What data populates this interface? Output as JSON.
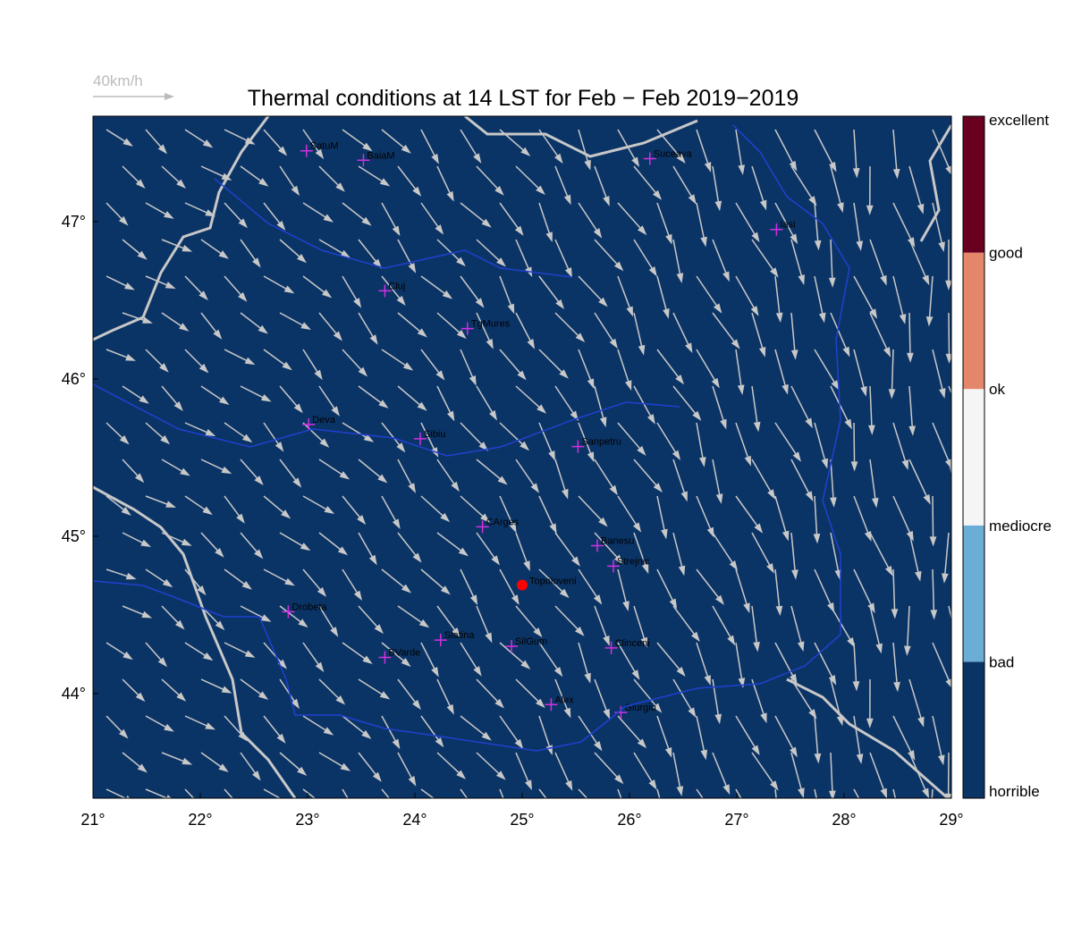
{
  "map": {
    "title": "Thermal conditions at 14 LST for Feb − Feb  2019−2019",
    "wind_reference": "40km/h",
    "background": "#0b3466",
    "xlim": [
      21,
      29
    ],
    "ylim": [
      43.335,
      47.67
    ],
    "xticks": [
      {
        "value": 21,
        "label": "21°"
      },
      {
        "value": 22,
        "label": "22°"
      },
      {
        "value": 23,
        "label": "23°"
      },
      {
        "value": 24,
        "label": "24°"
      },
      {
        "value": 25,
        "label": "25°"
      },
      {
        "value": 26,
        "label": "26°"
      },
      {
        "value": 27,
        "label": "27°"
      },
      {
        "value": 28,
        "label": "28°"
      },
      {
        "value": 29,
        "label": "29°"
      }
    ],
    "yticks": [
      {
        "value": 44,
        "label": "44°"
      },
      {
        "value": 45,
        "label": "45°"
      },
      {
        "value": 46,
        "label": "46°"
      },
      {
        "value": 47,
        "label": "47°"
      }
    ],
    "stations": [
      {
        "name": "SatuM",
        "lon": 22.99,
        "lat": 47.45
      },
      {
        "name": "BaiaM",
        "lon": 23.52,
        "lat": 47.39
      },
      {
        "name": "Suceava",
        "lon": 26.19,
        "lat": 47.4
      },
      {
        "name": "Iasi",
        "lon": 27.37,
        "lat": 46.95
      },
      {
        "name": "Cluj",
        "lon": 23.72,
        "lat": 46.56
      },
      {
        "name": "TgMures",
        "lon": 24.49,
        "lat": 46.32
      },
      {
        "name": "Deva",
        "lon": 23.01,
        "lat": 45.71
      },
      {
        "name": "Sibiu",
        "lon": 24.05,
        "lat": 45.62
      },
      {
        "name": "Sanpetru",
        "lon": 25.52,
        "lat": 45.57
      },
      {
        "name": "CArges",
        "lon": 24.63,
        "lat": 45.06
      },
      {
        "name": "Banesu",
        "lon": 25.7,
        "lat": 44.94
      },
      {
        "name": "Strejnic",
        "lon": 25.85,
        "lat": 44.81
      },
      {
        "name": "Drobeta",
        "lon": 22.82,
        "lat": 44.52
      },
      {
        "name": "Slatina",
        "lon": 24.24,
        "lat": 44.34
      },
      {
        "name": "SilGum",
        "lon": 24.9,
        "lat": 44.3
      },
      {
        "name": "BVarde",
        "lon": 23.72,
        "lat": 44.23
      },
      {
        "name": "Clinceni",
        "lon": 25.83,
        "lat": 44.29
      },
      {
        "name": "Alex",
        "lon": 25.27,
        "lat": 43.93
      },
      {
        "name": "Giurgiu",
        "lon": 25.92,
        "lat": 43.88
      }
    ],
    "highlight": {
      "name": "Topoloveni",
      "lon": 25.0,
      "lat": 44.69,
      "color": "#ff0000"
    },
    "colorbar": {
      "labels": [
        "horrible",
        "bad",
        "mediocre",
        "ok",
        "good",
        "excellent"
      ],
      "colors": [
        "#0b3466",
        "#6aadd5",
        "#f5f5f5",
        "#e4866a",
        "#6a0020"
      ]
    }
  }
}
